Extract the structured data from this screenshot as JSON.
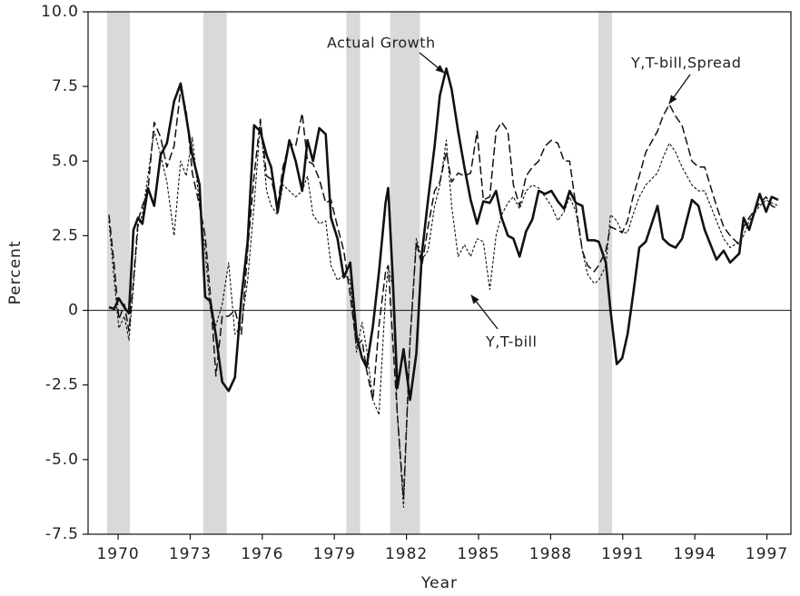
{
  "chart_data": {
    "type": "line",
    "x_label": "Year",
    "y_label": "Percent",
    "xlim": [
      1968.75,
      1998
    ],
    "ylim": [
      -7.5,
      10
    ],
    "xticks": [
      1970,
      1973,
      1976,
      1979,
      1982,
      1985,
      1988,
      1991,
      1994,
      1997
    ],
    "yticks": [
      {
        "value": 10,
        "label": "10.0"
      },
      7.5,
      {
        "value": 5,
        "label": "5.0"
      },
      2.5,
      0,
      -2.5,
      {
        "value": -5,
        "label": "-5.0"
      },
      -7.5
    ],
    "recessions": [
      [
        1969.54,
        1970.49
      ],
      [
        1973.54,
        1974.52
      ],
      [
        1979.5,
        1980.07
      ],
      [
        1981.32,
        1982.56
      ],
      [
        1989.99,
        1990.56
      ]
    ],
    "recession_color": "#d9d9d9",
    "zero_line": true,
    "x": [
      1969.62,
      1969.84,
      1970.03,
      1970.26,
      1970.45,
      1970.64,
      1970.83,
      1971.01,
      1971.24,
      1971.5,
      1971.77,
      1972.03,
      1972.33,
      1972.6,
      1972.83,
      1973.09,
      1973.39,
      1973.62,
      1973.84,
      1974.07,
      1974.33,
      1974.6,
      1974.86,
      1975.13,
      1975.39,
      1975.66,
      1975.92,
      1976.18,
      1976.37,
      1976.64,
      1976.86,
      1977.13,
      1977.39,
      1977.66,
      1977.88,
      1978.11,
      1978.37,
      1978.64,
      1978.86,
      1979.13,
      1979.39,
      1979.66,
      1979.92,
      1980.15,
      1980.34,
      1980.6,
      1980.86,
      1981.13,
      1981.24,
      1981.43,
      1981.62,
      1981.88,
      1982.15,
      1982.41,
      1982.64,
      1982.9,
      1983.17,
      1983.39,
      1983.66,
      1983.88,
      1984.15,
      1984.41,
      1984.67,
      1984.94,
      1985.2,
      1985.47,
      1985.73,
      1985.96,
      1986.22,
      1986.45,
      1986.71,
      1986.98,
      1987.24,
      1987.5,
      1987.77,
      1988.03,
      1988.3,
      1988.56,
      1988.79,
      1989.05,
      1989.32,
      1989.54,
      1989.81,
      1990.0,
      1990.3,
      1990.49,
      1990.75,
      1990.98,
      1991.2,
      1991.43,
      1991.69,
      1991.96,
      1992.45,
      1992.67,
      1992.94,
      1993.2,
      1993.47,
      1993.88,
      1994.15,
      1994.41,
      1994.9,
      1995.2,
      1995.47,
      1995.85,
      1996.03,
      1996.26,
      1996.7,
      1996.97,
      1997.2,
      1997.47
    ],
    "series": [
      {
        "name": "Actual Growth",
        "color": "#111111",
        "style": "solid",
        "values": [
          0.1,
          0.05,
          0.4,
          0.1,
          -0.1,
          2.7,
          3.1,
          2.9,
          4.1,
          3.5,
          5.2,
          5.6,
          7.0,
          7.6,
          6.5,
          5.2,
          4.2,
          0.45,
          0.3,
          -0.85,
          -2.4,
          -2.7,
          -2.25,
          0.4,
          2.3,
          6.2,
          6.0,
          5.2,
          4.8,
          3.3,
          4.5,
          5.7,
          5.0,
          4.0,
          5.7,
          5.0,
          6.1,
          5.9,
          3.1,
          2.4,
          1.1,
          1.6,
          -0.85,
          -1.6,
          -1.9,
          -0.55,
          1.3,
          3.6,
          4.1,
          1.1,
          -2.6,
          -1.3,
          -3.0,
          -1.45,
          1.9,
          3.7,
          5.5,
          7.2,
          8.1,
          7.4,
          6.0,
          4.8,
          3.7,
          2.9,
          3.65,
          3.6,
          4.0,
          3.1,
          2.5,
          2.4,
          1.8,
          2.65,
          3.05,
          4.0,
          3.9,
          4.0,
          3.65,
          3.4,
          4.0,
          3.6,
          3.5,
          2.35,
          2.35,
          2.3,
          1.6,
          0.0,
          -1.8,
          -1.6,
          -0.8,
          0.5,
          2.1,
          2.3,
          3.5,
          2.4,
          2.2,
          2.1,
          2.4,
          3.7,
          3.5,
          2.7,
          1.7,
          2.0,
          1.6,
          1.9,
          3.1,
          2.7,
          3.9,
          3.3,
          3.8,
          3.7
        ]
      },
      {
        "name": "Y,T-bill,Spread",
        "color": "#111111",
        "style": "long-dash",
        "values": [
          3.2,
          1.5,
          -0.3,
          0.2,
          -0.7,
          1.0,
          3.0,
          3.5,
          4.0,
          6.3,
          5.8,
          4.8,
          5.5,
          7.4,
          6.7,
          4.6,
          3.5,
          2.5,
          0.5,
          -2.2,
          -0.2,
          -0.2,
          0.0,
          -0.8,
          2.0,
          4.5,
          6.4,
          4.5,
          4.4,
          3.5,
          4.8,
          5.6,
          5.5,
          6.6,
          5.0,
          4.9,
          4.4,
          3.6,
          3.7,
          2.8,
          2.0,
          0.5,
          -1.2,
          -1.0,
          -2.0,
          -3.0,
          -0.5,
          1.3,
          1.5,
          -1.0,
          -3.5,
          -6.3,
          -1.0,
          2.3,
          1.5,
          2.8,
          4.0,
          4.3,
          5.3,
          4.3,
          4.6,
          4.5,
          4.6,
          6.0,
          3.7,
          3.8,
          6.0,
          6.3,
          6.0,
          4.2,
          3.5,
          4.5,
          4.8,
          5.0,
          5.5,
          5.7,
          5.6,
          5.0,
          5.0,
          3.5,
          2.0,
          1.5,
          1.3,
          1.5,
          2.0,
          2.8,
          2.7,
          2.6,
          3.0,
          3.8,
          4.5,
          5.3,
          6.0,
          6.5,
          6.9,
          6.5,
          6.2,
          5.0,
          4.8,
          4.8,
          3.5,
          2.8,
          2.5,
          2.2,
          2.8,
          3.1,
          3.6,
          3.8,
          3.5,
          3.4
        ]
      },
      {
        "name": "Y,T-bill",
        "color": "#111111",
        "style": "short-dash",
        "values": [
          3.0,
          1.0,
          -0.6,
          -0.2,
          -1.0,
          0.8,
          2.8,
          3.2,
          4.5,
          6.0,
          5.2,
          4.3,
          2.5,
          5.0,
          4.5,
          5.8,
          3.5,
          2.0,
          0.0,
          -0.5,
          0.2,
          1.6,
          -0.8,
          -0.5,
          1.0,
          3.5,
          6.3,
          4.0,
          3.5,
          3.2,
          4.2,
          4.0,
          3.8,
          4.0,
          4.5,
          3.2,
          2.9,
          3.0,
          1.5,
          1.0,
          1.2,
          1.0,
          -1.4,
          -0.4,
          -1.3,
          -3.0,
          -3.5,
          0.5,
          1.5,
          0.8,
          -3.5,
          -6.6,
          -1.0,
          2.4,
          1.7,
          2.0,
          3.5,
          4.2,
          5.7,
          3.5,
          1.8,
          2.2,
          1.8,
          2.4,
          2.3,
          0.7,
          2.5,
          3.2,
          3.6,
          3.8,
          3.4,
          4.0,
          4.2,
          4.1,
          3.8,
          3.5,
          3.0,
          3.3,
          3.8,
          3.3,
          2.0,
          1.2,
          0.9,
          1.0,
          1.5,
          3.2,
          3.0,
          2.6,
          2.6,
          3.2,
          3.8,
          4.2,
          4.6,
          5.1,
          5.6,
          5.3,
          4.8,
          4.2,
          4.0,
          4.0,
          3.0,
          2.4,
          2.1,
          2.3,
          2.5,
          3.0,
          3.5,
          3.7,
          3.6,
          3.5
        ]
      }
    ]
  }
}
